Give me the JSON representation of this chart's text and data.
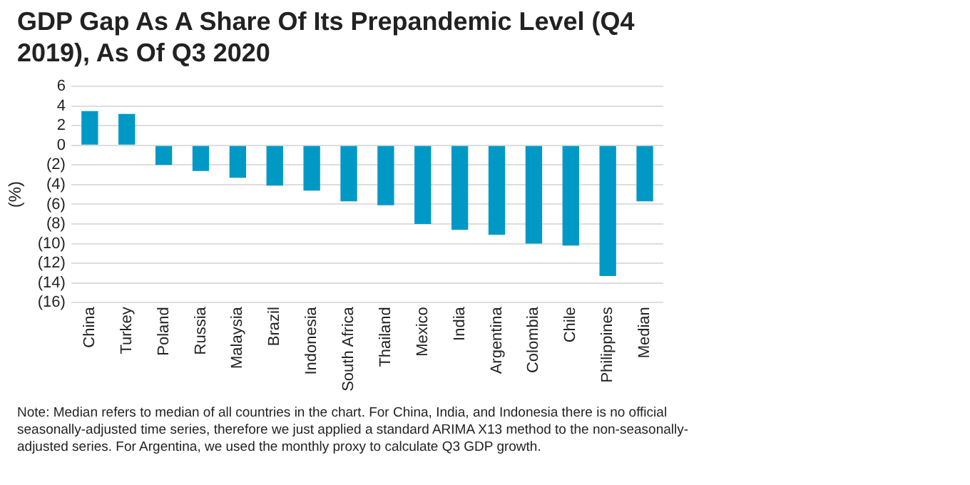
{
  "chart_data": {
    "type": "bar",
    "title": "GDP Gap As A Share Of Its Prepandemic Level (Q4 2019), As Of Q3 2020",
    "ylabel": "(%)",
    "categories": [
      "China",
      "Turkey",
      "Poland",
      "Russia",
      "Malaysia",
      "Brazil",
      "Indonesia",
      "South Africa",
      "Thailand",
      "Mexico",
      "India",
      "Argentina",
      "Colombia",
      "Chile",
      "Philippines",
      "Median"
    ],
    "values": [
      3.5,
      3.2,
      -2.0,
      -2.6,
      -3.3,
      -4.1,
      -4.6,
      -5.7,
      -6.1,
      -8.0,
      -8.6,
      -9.1,
      -10.0,
      -10.2,
      -13.3,
      -5.7
    ],
    "color": "#0099c6",
    "ylim": [
      -16,
      6
    ],
    "yticks": [
      6,
      4,
      2,
      0,
      {
        "value": -2,
        "label": "(2)"
      },
      {
        "value": -4,
        "label": "(4)"
      },
      {
        "value": -6,
        "label": "(6)"
      },
      {
        "value": -8,
        "label": "(8)"
      },
      {
        "value": -10,
        "label": "(10)"
      },
      {
        "value": -12,
        "label": "(12)"
      },
      {
        "value": -14,
        "label": "(14)"
      },
      {
        "value": -16,
        "label": "(16)"
      }
    ],
    "grid": "y",
    "annotations": [
      "Note: Median refers to median of all countries in the chart. For China, India, and Indonesia there is no official seasonally-adjusted time series, therefore we just applied a standard ARIMA X13 method to the non-seasonally-adjusted series. For Argentina, we used the monthly proxy to calculate Q3 GDP growth."
    ]
  }
}
